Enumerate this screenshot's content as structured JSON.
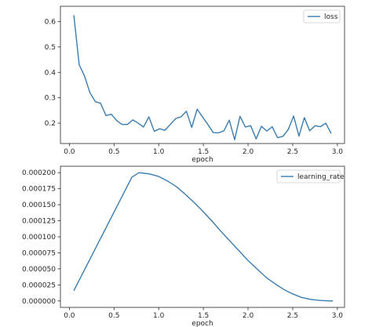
{
  "style": {
    "line_color": "#3a7cb0",
    "axis_color": "#262626",
    "legend_border": "#cccccc"
  },
  "chart_data": [
    {
      "type": "line",
      "title": "",
      "xlabel": "epoch",
      "ylabel": "",
      "xlim": [
        -0.1,
        3.08
      ],
      "ylim": [
        0.12,
        0.66
      ],
      "xticks": [
        0.0,
        0.5,
        1.0,
        1.5,
        2.0,
        2.5,
        3.0
      ],
      "xtick_labels": [
        "0.0",
        "0.5",
        "1.0",
        "1.5",
        "2.0",
        "2.5",
        "3.0"
      ],
      "yticks": [
        0.2,
        0.3,
        0.4,
        0.5,
        0.6
      ],
      "ytick_labels": [
        "0.2",
        "0.3",
        "0.4",
        "0.5",
        "0.6"
      ],
      "grid": false,
      "legend": "top-right",
      "series": [
        {
          "name": "loss",
          "x": [
            0.05,
            0.11,
            0.17,
            0.23,
            0.29,
            0.35,
            0.41,
            0.47,
            0.53,
            0.59,
            0.65,
            0.71,
            0.77,
            0.83,
            0.89,
            0.95,
            1.01,
            1.07,
            1.13,
            1.19,
            1.25,
            1.31,
            1.37,
            1.43,
            1.49,
            1.55,
            1.61,
            1.67,
            1.73,
            1.79,
            1.85,
            1.91,
            1.97,
            2.03,
            2.09,
            2.15,
            2.21,
            2.27,
            2.33,
            2.39,
            2.45,
            2.51,
            2.57,
            2.63,
            2.69,
            2.75,
            2.81,
            2.87,
            2.93
          ],
          "y": [
            0.625,
            0.43,
            0.385,
            0.32,
            0.285,
            0.278,
            0.23,
            0.235,
            0.21,
            0.195,
            0.195,
            0.213,
            0.2,
            0.185,
            0.225,
            0.168,
            0.178,
            0.172,
            0.195,
            0.218,
            0.225,
            0.247,
            0.183,
            0.255,
            0.225,
            0.195,
            0.163,
            0.162,
            0.17,
            0.212,
            0.135,
            0.227,
            0.185,
            0.19,
            0.138,
            0.188,
            0.169,
            0.186,
            0.143,
            0.148,
            0.175,
            0.228,
            0.149,
            0.222,
            0.17,
            0.19,
            0.186,
            0.2,
            0.16
          ]
        }
      ]
    },
    {
      "type": "line",
      "title": "",
      "xlabel": "epoch",
      "ylabel": "",
      "xlim": [
        -0.1,
        3.08
      ],
      "ylim": [
        -1e-05,
        0.00021
      ],
      "xticks": [
        0.0,
        0.5,
        1.0,
        1.5,
        2.0,
        2.5,
        3.0
      ],
      "xtick_labels": [
        "0.0",
        "0.5",
        "1.0",
        "1.5",
        "2.0",
        "2.5",
        "3.0"
      ],
      "yticks": [
        0.0,
        2.5e-05,
        5e-05,
        7.5e-05,
        0.0001,
        0.000125,
        0.00015,
        0.000175,
        0.0002
      ],
      "ytick_labels": [
        "0.000000",
        "0.000025",
        "0.000050",
        "0.000075",
        "0.000100",
        "0.000125",
        "0.000150",
        "0.000175",
        "0.000200"
      ],
      "grid": false,
      "legend": "top-right",
      "series": [
        {
          "name": "learning_rate",
          "x": [
            0.05,
            0.7,
            0.78,
            0.9,
            1.0,
            1.1,
            1.2,
            1.3,
            1.4,
            1.5,
            1.6,
            1.7,
            1.8,
            1.9,
            2.0,
            2.1,
            2.2,
            2.3,
            2.4,
            2.5,
            2.6,
            2.7,
            2.8,
            2.9,
            2.95
          ],
          "y": [
            1.6e-05,
            0.000193,
            0.0002,
            0.000198,
            0.000194,
            0.000187,
            0.000178,
            0.000166,
            0.000153,
            0.000139,
            0.000124,
            0.000108,
            9.3e-05,
            7.8e-05,
            6.3e-05,
            5e-05,
            3.7e-05,
            2.7e-05,
            1.8e-05,
            1.1e-05,
            5.5e-06,
            2.5e-06,
            9e-07,
            2e-07,
            1e-07
          ]
        }
      ]
    }
  ]
}
